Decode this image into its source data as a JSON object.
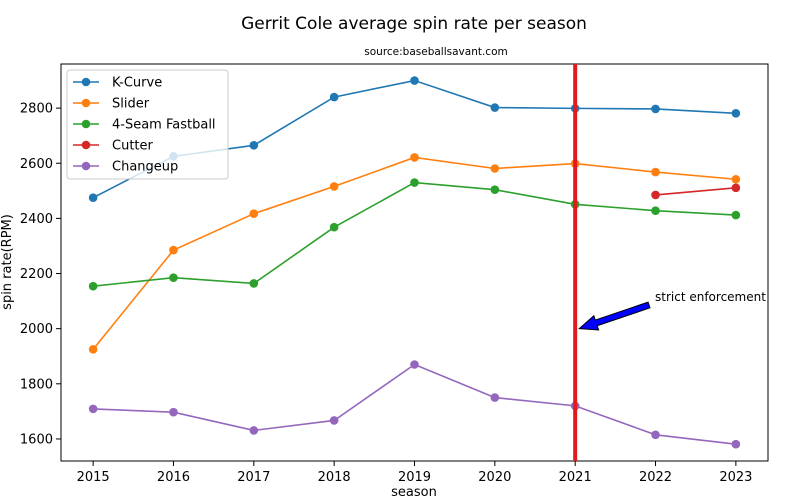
{
  "chart_data": {
    "type": "line",
    "title": "Gerrit Cole average spin rate per season",
    "subtitle": "source:baseballsavant.com",
    "xlabel": "season",
    "ylabel": "spin rate(RPM)",
    "x": [
      2015,
      2016,
      2017,
      2018,
      2019,
      2020,
      2021,
      2022,
      2023
    ],
    "xlim": [
      2014.6,
      2023.4
    ],
    "ylim": [
      1520,
      2960
    ],
    "yticks": [
      1600,
      1800,
      2000,
      2200,
      2400,
      2600,
      2800
    ],
    "grid": false,
    "legend_position": "upper-left",
    "series": [
      {
        "name": "K-Curve",
        "color": "#1f77b4",
        "values": [
          2475,
          2625,
          2665,
          2840,
          2900,
          2802,
          2799,
          2797,
          2781
        ]
      },
      {
        "name": "Slider",
        "color": "#ff7f0e",
        "values": [
          1925,
          2285,
          2417,
          2516,
          2621,
          2581,
          2599,
          2568,
          2542
        ]
      },
      {
        "name": "4-Seam Fastball",
        "color": "#2ca02c",
        "values": [
          2154,
          2185,
          2164,
          2368,
          2530,
          2504,
          2451,
          2428,
          2412
        ]
      },
      {
        "name": "Cutter",
        "color": "#d62728",
        "values": [
          null,
          null,
          null,
          null,
          null,
          null,
          null,
          2485,
          2511
        ]
      },
      {
        "name": "Changeup",
        "color": "#9467bd",
        "values": [
          1709,
          1697,
          1631,
          1667,
          1870,
          1750,
          1720,
          1615,
          1581
        ]
      }
    ],
    "vline": {
      "x": 2021,
      "color": "#e31a1c"
    },
    "annotation": {
      "text": "strict enforcement",
      "point_x": 2021,
      "point_y": 2000,
      "arrow_color": "#0000ff"
    }
  }
}
